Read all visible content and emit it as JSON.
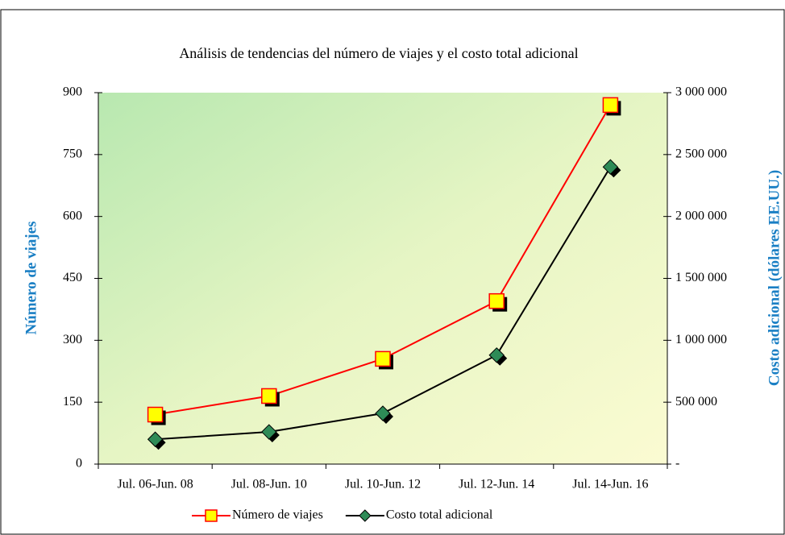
{
  "chart_data": {
    "type": "line",
    "title": "Análisis de tendencias del número de viajes y el costo total adicional",
    "y_label": "Número de viajes",
    "y2_label": "Costo adicional (dólares EE.UU.)",
    "categories": [
      "Jul. 06-Jun. 08",
      "Jul. 08-Jun. 10",
      "Jul. 10-Jun. 12",
      "Jul. 12-Jun. 14",
      "Jul. 14-Jun. 16"
    ],
    "series": [
      {
        "name": "Número de viajes",
        "color": "#ff0000",
        "marker_color": "#ffff00",
        "marker": "square",
        "values": [
          120,
          165,
          255,
          395,
          870
        ]
      },
      {
        "name": "Costo total adicional",
        "color": "#000000",
        "marker_color": "#2e8b57",
        "marker": "diamond",
        "axis": "y2",
        "values": [
          200000,
          260000,
          410000,
          880000,
          2400000
        ]
      }
    ],
    "ylim": [
      0,
      900
    ],
    "yticks": [
      0,
      150,
      300,
      450,
      600,
      750,
      900
    ],
    "y2lim": [
      0,
      3000000
    ],
    "y2ticks": [
      {
        "value": 0,
        "label": "-"
      },
      {
        "value": 500000,
        "label": "500 000"
      },
      {
        "value": 1000000,
        "label": "1 000 000"
      },
      {
        "value": 1500000,
        "label": "1 500 000"
      },
      {
        "value": 2000000,
        "label": "2 000 000"
      },
      {
        "value": 2500000,
        "label": "2 500 000"
      },
      {
        "value": 3000000,
        "label": "3 000 000"
      }
    ],
    "legend": "bottom"
  }
}
